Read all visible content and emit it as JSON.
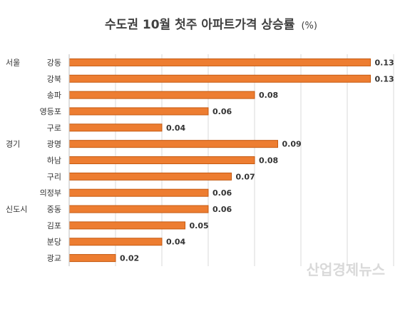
{
  "chart_data": {
    "type": "bar",
    "orientation": "horizontal",
    "title": "수도권 10월 첫주 아파트가격 상승률",
    "title_unit": "(%)",
    "categories": [
      "강동",
      "강북",
      "송파",
      "영등포",
      "구로",
      "광명",
      "하남",
      "구리",
      "의정부",
      "중동",
      "김포",
      "분당",
      "광교"
    ],
    "groups": [
      {
        "label": "서울",
        "first_category": "강동"
      },
      {
        "label": "경기",
        "first_category": "광명"
      },
      {
        "label": "신도시",
        "first_category": "중동"
      }
    ],
    "values": [
      0.13,
      0.13,
      0.08,
      0.06,
      0.04,
      0.09,
      0.08,
      0.07,
      0.06,
      0.06,
      0.05,
      0.04,
      0.02
    ],
    "data_labels": [
      "0.13",
      "0.13",
      "0.08",
      "0.06",
      "0.04",
      "0.09",
      "0.08",
      "0.07",
      "0.06",
      "0.06",
      "0.05",
      "0.04",
      "0.02"
    ],
    "xlim": [
      0,
      0.14
    ],
    "grid": true,
    "bar_color": "#ED7D31",
    "bar_stroke": "#C55A11"
  },
  "watermark": "산업경제뉴스"
}
